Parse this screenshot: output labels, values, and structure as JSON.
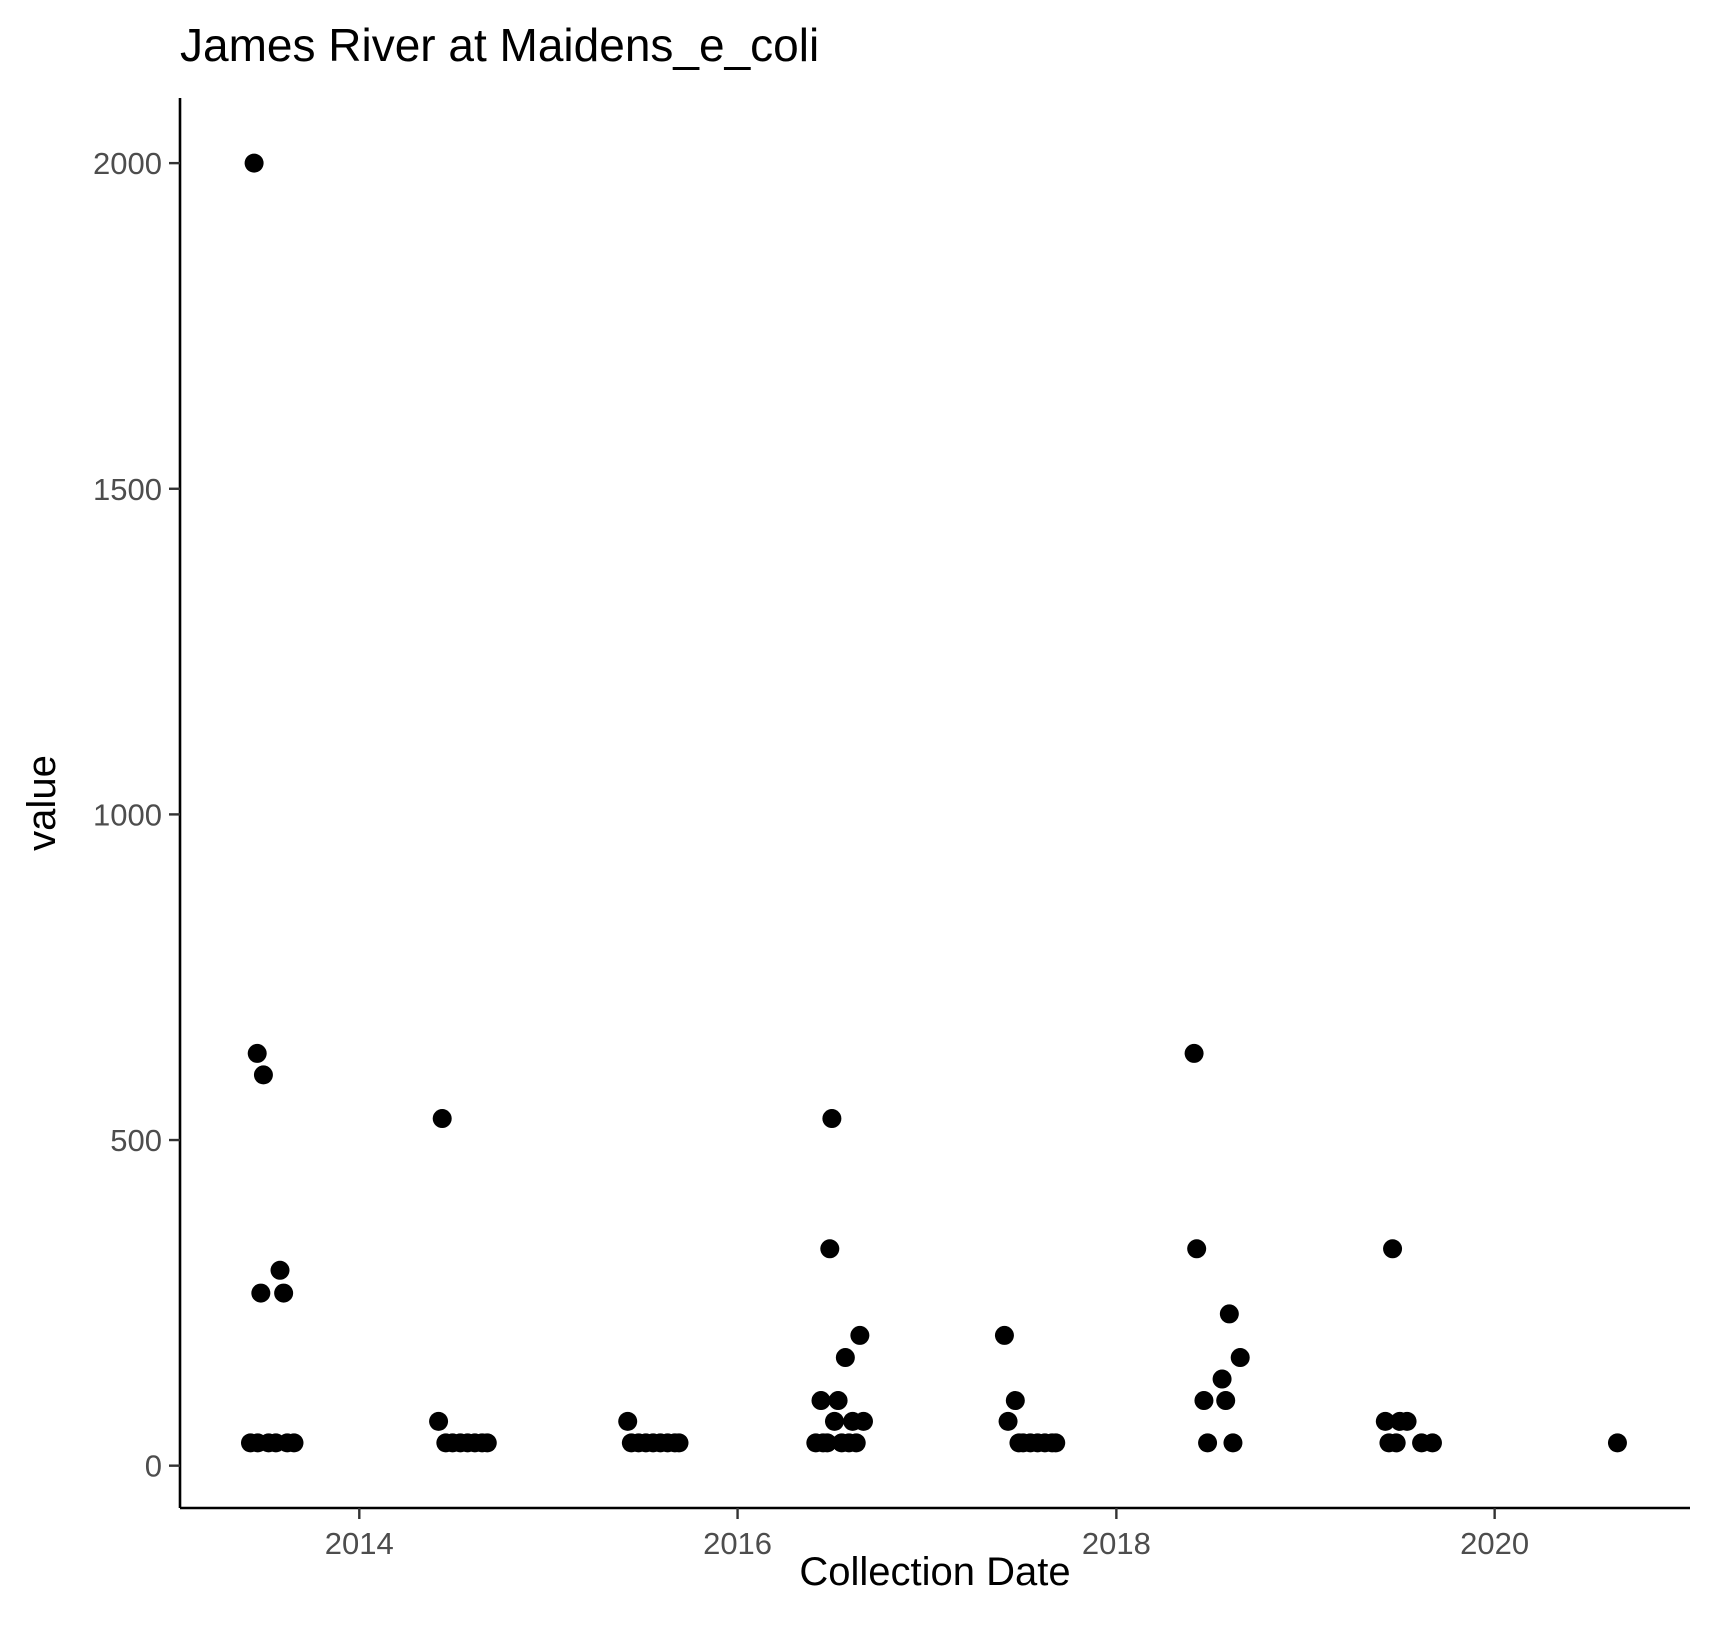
{
  "chart_data": {
    "type": "scatter",
    "title": "James River at Maidens_e_coli",
    "xlabel": "Collection Date",
    "ylabel": "value",
    "x_type": "date",
    "x_ticks": [
      "2014-01-01",
      "2016-01-01",
      "2018-01-01",
      "2020-01-01"
    ],
    "x_tick_labels": [
      "2014",
      "2016",
      "2018",
      "2020"
    ],
    "y_ticks": [
      0,
      500,
      1000,
      1500,
      2000
    ],
    "y_tick_labels": [
      "0",
      "500",
      "1000",
      "1500",
      "2000"
    ],
    "xlim": [
      "2013-01-20",
      "2021-01-12"
    ],
    "ylim": [
      -65,
      2100
    ],
    "grid": false,
    "legend": "none",
    "point_color": "#000000",
    "points": [
      {
        "x": "2013-06-05",
        "y": 35
      },
      {
        "x": "2013-06-12",
        "y": 2000
      },
      {
        "x": "2013-06-19",
        "y": 35
      },
      {
        "x": "2013-06-18",
        "y": 633
      },
      {
        "x": "2013-06-25",
        "y": 265
      },
      {
        "x": "2013-06-30",
        "y": 600
      },
      {
        "x": "2013-07-10",
        "y": 35
      },
      {
        "x": "2013-07-24",
        "y": 35
      },
      {
        "x": "2013-08-01",
        "y": 300
      },
      {
        "x": "2013-08-08",
        "y": 265
      },
      {
        "x": "2013-08-15",
        "y": 35
      },
      {
        "x": "2013-08-28",
        "y": 35
      },
      {
        "x": "2014-06-03",
        "y": 68
      },
      {
        "x": "2014-06-10",
        "y": 533
      },
      {
        "x": "2014-06-17",
        "y": 35
      },
      {
        "x": "2014-06-30",
        "y": 35
      },
      {
        "x": "2014-07-15",
        "y": 35
      },
      {
        "x": "2014-07-29",
        "y": 35
      },
      {
        "x": "2014-08-12",
        "y": 35
      },
      {
        "x": "2014-08-26",
        "y": 35
      },
      {
        "x": "2014-09-05",
        "y": 35
      },
      {
        "x": "2015-06-03",
        "y": 68
      },
      {
        "x": "2015-06-10",
        "y": 35
      },
      {
        "x": "2015-06-24",
        "y": 35
      },
      {
        "x": "2015-07-08",
        "y": 35
      },
      {
        "x": "2015-07-22",
        "y": 35
      },
      {
        "x": "2015-08-05",
        "y": 35
      },
      {
        "x": "2015-08-19",
        "y": 35
      },
      {
        "x": "2015-09-02",
        "y": 35
      },
      {
        "x": "2015-09-10",
        "y": 35
      },
      {
        "x": "2016-05-31",
        "y": 35
      },
      {
        "x": "2016-06-10",
        "y": 100
      },
      {
        "x": "2016-06-14",
        "y": 35
      },
      {
        "x": "2016-06-22",
        "y": 35
      },
      {
        "x": "2016-06-27",
        "y": 333
      },
      {
        "x": "2016-07-01",
        "y": 533
      },
      {
        "x": "2016-07-06",
        "y": 68
      },
      {
        "x": "2016-07-13",
        "y": 100
      },
      {
        "x": "2016-07-20",
        "y": 35
      },
      {
        "x": "2016-07-27",
        "y": 166
      },
      {
        "x": "2016-08-03",
        "y": 35
      },
      {
        "x": "2016-08-10",
        "y": 68
      },
      {
        "x": "2016-08-17",
        "y": 35
      },
      {
        "x": "2016-08-24",
        "y": 200
      },
      {
        "x": "2016-08-31",
        "y": 68
      },
      {
        "x": "2017-05-30",
        "y": 200
      },
      {
        "x": "2017-06-06",
        "y": 68
      },
      {
        "x": "2017-06-20",
        "y": 100
      },
      {
        "x": "2017-06-27",
        "y": 35
      },
      {
        "x": "2017-07-05",
        "y": 35
      },
      {
        "x": "2017-07-19",
        "y": 35
      },
      {
        "x": "2017-08-02",
        "y": 35
      },
      {
        "x": "2017-08-16",
        "y": 35
      },
      {
        "x": "2017-08-30",
        "y": 35
      },
      {
        "x": "2017-09-06",
        "y": 35
      },
      {
        "x": "2018-05-31",
        "y": 633
      },
      {
        "x": "2018-06-05",
        "y": 333
      },
      {
        "x": "2018-06-19",
        "y": 100
      },
      {
        "x": "2018-06-26",
        "y": 35
      },
      {
        "x": "2018-07-24",
        "y": 133
      },
      {
        "x": "2018-07-31",
        "y": 100
      },
      {
        "x": "2018-08-07",
        "y": 233
      },
      {
        "x": "2018-08-14",
        "y": 35
      },
      {
        "x": "2018-08-28",
        "y": 166
      },
      {
        "x": "2019-06-04",
        "y": 68
      },
      {
        "x": "2019-06-11",
        "y": 35
      },
      {
        "x": "2019-06-18",
        "y": 333
      },
      {
        "x": "2019-06-25",
        "y": 35
      },
      {
        "x": "2019-07-02",
        "y": 68
      },
      {
        "x": "2019-07-16",
        "y": 68
      },
      {
        "x": "2019-08-13",
        "y": 35
      },
      {
        "x": "2019-09-03",
        "y": 35
      },
      {
        "x": "2020-08-25",
        "y": 35
      }
    ]
  }
}
